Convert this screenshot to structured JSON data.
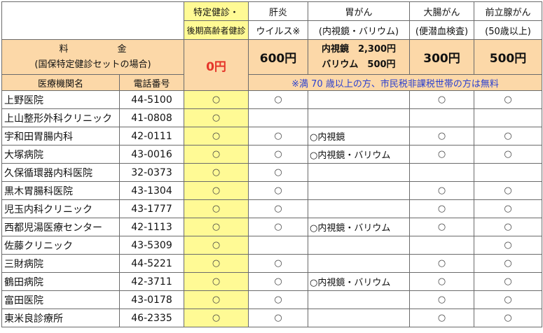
{
  "header": {
    "col1_line1": "特定健診・",
    "col1_line2": "後期高齢者健診",
    "col2_line1": "肝炎",
    "col2_line2": "ウイルス※",
    "col3_line1": "胃がん",
    "col3_line2": "(内視鏡・バリウム)",
    "col4_line1": "大腸がん",
    "col4_line2": "(便潜血検査)",
    "col5_line1": "前立腺がん",
    "col5_line2": "(50歳以上)"
  },
  "fees": {
    "label_line1": "料金",
    "label_line2": "(国保特定健診セットの場合)",
    "checkup": "0円",
    "hepatitis": "600円",
    "gastric_line1": "内視鏡　2,300円",
    "gastric_line2": "バリウム　500円",
    "colon": "300円",
    "prostate": "500円"
  },
  "columns": {
    "facility": "医療機関名",
    "phone": "電話番号",
    "note": "※満 70 歳以上の方、市民税非課税世帯の方は無料"
  },
  "rows": [
    {
      "name": "上野医院",
      "tel": "44-5100",
      "checkup": "○",
      "hepatitis": "○",
      "gastric": "",
      "colon": "○",
      "prostate": "○"
    },
    {
      "name": "上山整形外科クリニック",
      "tel": "41-0808",
      "checkup": "○",
      "hepatitis": "",
      "gastric": "",
      "colon": "",
      "prostate": ""
    },
    {
      "name": "宇和田胃腸内科",
      "tel": "42-0111",
      "checkup": "○",
      "hepatitis": "○",
      "gastric": "○内視鏡",
      "colon": "○",
      "prostate": "○"
    },
    {
      "name": "大塚病院",
      "tel": "43-0016",
      "checkup": "○",
      "hepatitis": "○",
      "gastric": "○内視鏡・バリウム",
      "colon": "○",
      "prostate": "○"
    },
    {
      "name": "久保循環器内科医院",
      "tel": "32-0373",
      "checkup": "○",
      "hepatitis": "○",
      "gastric": "",
      "colon": "",
      "prostate": ""
    },
    {
      "name": "黒木胃腸科医院",
      "tel": "43-1304",
      "checkup": "○",
      "hepatitis": "○",
      "gastric": "",
      "colon": "○",
      "prostate": "○"
    },
    {
      "name": "児玉内科クリニック",
      "tel": "43-1777",
      "checkup": "○",
      "hepatitis": "○",
      "gastric": "",
      "colon": "○",
      "prostate": "○"
    },
    {
      "name": "西都児湯医療センター",
      "tel": "42-1113",
      "checkup": "○",
      "hepatitis": "○",
      "gastric": "○内視鏡・バリウム",
      "colon": "○",
      "prostate": "○"
    },
    {
      "name": "佐藤クリニック",
      "tel": "43-5309",
      "checkup": "○",
      "hepatitis": "",
      "gastric": "",
      "colon": "",
      "prostate": "○"
    },
    {
      "name": "三財病院",
      "tel": "44-5221",
      "checkup": "○",
      "hepatitis": "○",
      "gastric": "",
      "colon": "○",
      "prostate": "○"
    },
    {
      "name": "鶴田病院",
      "tel": "42-3711",
      "checkup": "○",
      "hepatitis": "○",
      "gastric": "○内視鏡・バリウム",
      "colon": "○",
      "prostate": "○"
    },
    {
      "name": "富田医院",
      "tel": "43-0178",
      "checkup": "○",
      "hepatitis": "○",
      "gastric": "",
      "colon": "○",
      "prostate": "○"
    },
    {
      "name": "東米良診療所",
      "tel": "46-2335",
      "checkup": "○",
      "hepatitis": "○",
      "gastric": "",
      "colon": "○",
      "prostate": "○"
    }
  ]
}
